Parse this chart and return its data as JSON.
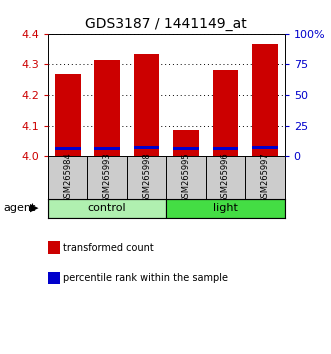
{
  "title": "GDS3187 / 1441149_at",
  "samples": [
    "GSM265984",
    "GSM265993",
    "GSM265998",
    "GSM265995",
    "GSM265996",
    "GSM265997"
  ],
  "red_values": [
    4.27,
    4.315,
    4.335,
    4.085,
    4.28,
    4.365
  ],
  "blue_bottom": [
    4.02,
    4.02,
    4.025,
    4.02,
    4.02,
    4.025
  ],
  "blue_heights": [
    0.01,
    0.01,
    0.01,
    0.01,
    0.01,
    0.01
  ],
  "ylim_left": [
    4.0,
    4.4
  ],
  "ylim_right": [
    0,
    100
  ],
  "yticks_left": [
    4.0,
    4.1,
    4.2,
    4.3,
    4.4
  ],
  "yticks_right": [
    0,
    25,
    50,
    75,
    100
  ],
  "groups": [
    {
      "label": "control",
      "indices": [
        0,
        1,
        2
      ],
      "color": "#b0f0b0"
    },
    {
      "label": "light",
      "indices": [
        3,
        4,
        5
      ],
      "color": "#44dd44"
    }
  ],
  "bar_width": 0.65,
  "red_color": "#cc0000",
  "blue_color": "#0000cc",
  "left_axis_color": "#cc0000",
  "right_axis_color": "#0000cc",
  "bg_color": "#ffffff",
  "plot_bg_color": "#ffffff",
  "grid_color": "#000000",
  "label_box_color": "#cccccc",
  "agent_text": "agent",
  "legend_items": [
    {
      "label": "transformed count",
      "color": "#cc0000"
    },
    {
      "label": "percentile rank within the sample",
      "color": "#0000cc"
    }
  ]
}
